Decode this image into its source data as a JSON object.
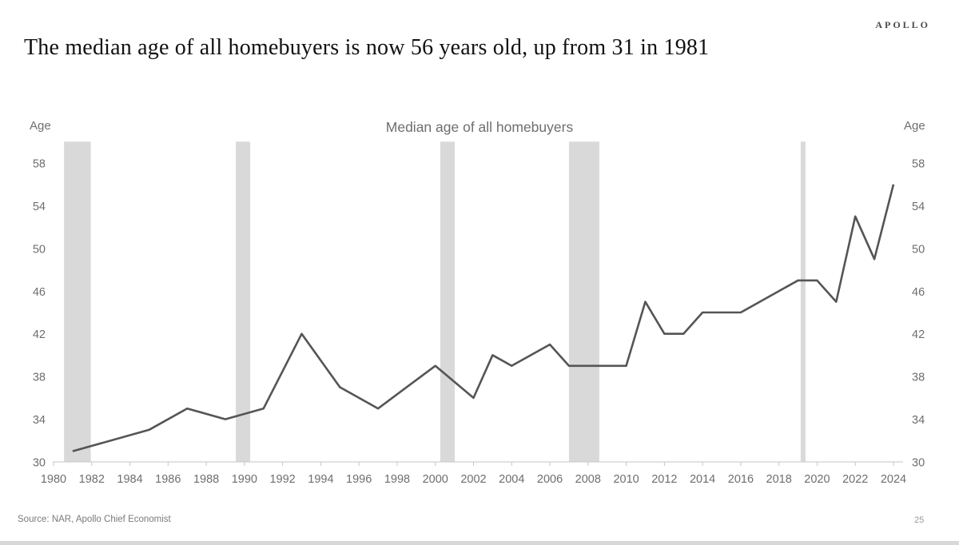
{
  "header": {
    "logo": "APOLLO",
    "title": "The median age of all homebuyers is now 56 years old, up from 31 in 1981"
  },
  "chart_data": {
    "type": "line",
    "title": "Median age of all homebuyers",
    "ylabel": "Age",
    "y_axis_label_left": "Age",
    "y_axis_label_right": "Age",
    "xlim": [
      1980,
      2024
    ],
    "ylim": [
      30,
      60
    ],
    "grid": false,
    "legend": "none",
    "y_ticks": [
      30,
      34,
      38,
      42,
      46,
      50,
      54,
      58
    ],
    "x_ticks": [
      1980,
      1982,
      1984,
      1986,
      1988,
      1990,
      1992,
      1994,
      1996,
      1998,
      2000,
      2002,
      2004,
      2006,
      2008,
      2010,
      2012,
      2014,
      2016,
      2018,
      2020,
      2022,
      2024
    ],
    "series": [
      {
        "name": "Median age of all homebuyers",
        "color": "#555555",
        "points": [
          [
            1981,
            31
          ],
          [
            1985,
            33
          ],
          [
            1987,
            35
          ],
          [
            1989,
            34
          ],
          [
            1991,
            35
          ],
          [
            1993,
            42
          ],
          [
            1995,
            37
          ],
          [
            1997,
            35
          ],
          [
            2000,
            39
          ],
          [
            2002,
            36
          ],
          [
            2003,
            40
          ],
          [
            2004,
            39
          ],
          [
            2006,
            41
          ],
          [
            2007,
            39
          ],
          [
            2008,
            39
          ],
          [
            2009,
            39
          ],
          [
            2010,
            39
          ],
          [
            2011,
            45
          ],
          [
            2012,
            42
          ],
          [
            2013,
            42
          ],
          [
            2014,
            44
          ],
          [
            2015,
            44
          ],
          [
            2016,
            44
          ],
          [
            2017,
            45
          ],
          [
            2018,
            46
          ],
          [
            2019,
            47
          ],
          [
            2020,
            47
          ],
          [
            2021,
            45
          ],
          [
            2022,
            53
          ],
          [
            2023,
            49
          ],
          [
            2024,
            56
          ]
        ]
      }
    ],
    "recession_bands": {
      "color": "#d9d9d9",
      "ranges": [
        [
          1980.55,
          1981.95
        ],
        [
          1989.55,
          1990.3
        ],
        [
          2000.26,
          2001.02
        ],
        [
          2007.0,
          2008.59
        ],
        [
          2019.14,
          2019.39
        ]
      ]
    },
    "colors": {
      "line": "#555555",
      "band": "#d9d9d9",
      "axis": "#c6c6c6",
      "tick_text": "#6e6e6e"
    }
  },
  "footer": {
    "source": "Source: NAR, Apollo Chief Economist",
    "page_number": "25"
  }
}
